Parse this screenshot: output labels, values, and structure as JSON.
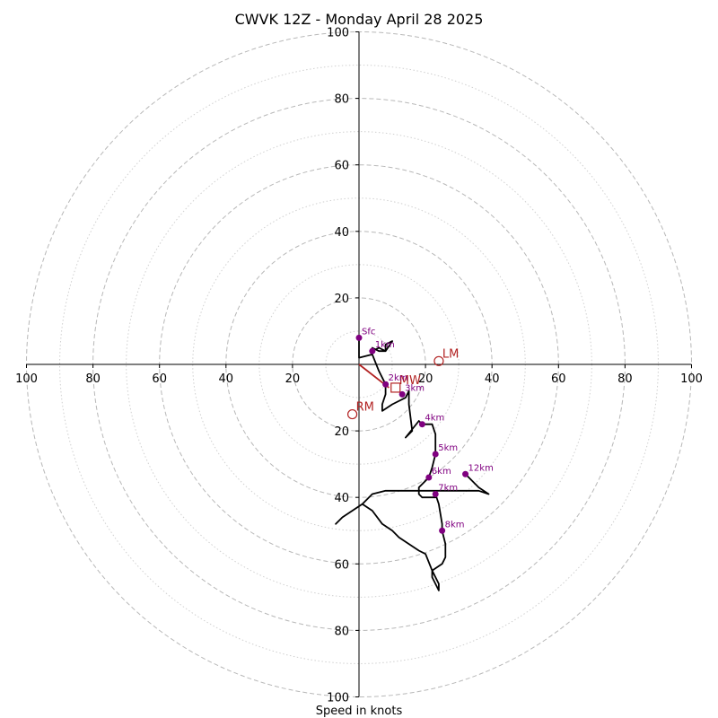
{
  "chart_data": {
    "type": "line",
    "title": "CWVK 12Z - Monday April 28 2025",
    "xlabel": "Speed in knots",
    "ylabel": "",
    "xlim": [
      -100,
      100
    ],
    "ylim": [
      -100,
      100
    ],
    "rings_dashed": [
      20,
      40,
      60,
      80,
      100
    ],
    "rings_dotted": [
      10,
      30,
      50,
      70,
      90
    ],
    "ticks": [
      -100,
      -80,
      -60,
      -40,
      -20,
      20,
      40,
      60,
      80,
      100
    ],
    "tick_labels": [
      "100",
      "80",
      "60",
      "40",
      "20",
      "20",
      "40",
      "60",
      "80",
      "100"
    ],
    "grid": true,
    "hodograph": {
      "color": "#000000",
      "points": [
        [
          0,
          2
        ],
        [
          0,
          8
        ],
        [
          0,
          2
        ],
        [
          4,
          3
        ],
        [
          4,
          5
        ],
        [
          6,
          4
        ],
        [
          8,
          4
        ],
        [
          8,
          6
        ],
        [
          10,
          7
        ],
        [
          8,
          4
        ],
        [
          6,
          5
        ],
        [
          4,
          4
        ],
        [
          4,
          3
        ],
        [
          6,
          -2
        ],
        [
          8,
          -6
        ],
        [
          8,
          -9
        ],
        [
          7,
          -12
        ],
        [
          7,
          -14
        ],
        [
          10,
          -12
        ],
        [
          14,
          -10
        ],
        [
          15,
          -8
        ],
        [
          15,
          -12
        ],
        [
          16,
          -20
        ],
        [
          14,
          -22
        ],
        [
          18,
          -17
        ],
        [
          19,
          -18
        ],
        [
          22,
          -18
        ],
        [
          23,
          -21
        ],
        [
          23,
          -27
        ],
        [
          22,
          -31
        ],
        [
          21,
          -34
        ],
        [
          20,
          -35
        ],
        [
          18,
          -37
        ],
        [
          18,
          -39
        ],
        [
          19,
          -40
        ],
        [
          23,
          -40
        ],
        [
          23,
          -39
        ],
        [
          24,
          -42
        ],
        [
          25,
          -48
        ],
        [
          25,
          -50
        ],
        [
          26,
          -54
        ],
        [
          26,
          -58
        ],
        [
          25,
          -60
        ],
        [
          22,
          -62
        ],
        [
          22,
          -64
        ],
        [
          23,
          -66
        ],
        [
          24,
          -68
        ],
        [
          24,
          -66
        ],
        [
          22,
          -62
        ],
        [
          20,
          -57
        ],
        [
          18,
          -56
        ],
        [
          15,
          -54
        ],
        [
          12,
          -52
        ],
        [
          10,
          -50
        ],
        [
          7,
          -48
        ],
        [
          4,
          -44
        ],
        [
          1,
          -42
        ],
        [
          -2,
          -44
        ],
        [
          -5,
          -46
        ],
        [
          -7,
          -48
        ],
        [
          -5,
          -46
        ],
        [
          -2,
          -44
        ],
        [
          1,
          -42
        ],
        [
          4,
          -39
        ],
        [
          8,
          -38
        ],
        [
          12,
          -38
        ],
        [
          16,
          -38
        ],
        [
          20,
          -38
        ],
        [
          24,
          -38
        ],
        [
          28,
          -38
        ],
        [
          32,
          -38
        ],
        [
          36,
          -38
        ],
        [
          39,
          -39
        ],
        [
          36,
          -37
        ],
        [
          32,
          -33
        ]
      ]
    },
    "height_markers": [
      {
        "label": "Sfc",
        "u": 0,
        "v": 8
      },
      {
        "label": "1km",
        "u": 4,
        "v": 4
      },
      {
        "label": "2km",
        "u": 8,
        "v": -6
      },
      {
        "label": "3km",
        "u": 13,
        "v": -9
      },
      {
        "label": "4km",
        "u": 19,
        "v": -18
      },
      {
        "label": "5km",
        "u": 23,
        "v": -27
      },
      {
        "label": "6km",
        "u": 21,
        "v": -34
      },
      {
        "label": "7km",
        "u": 23,
        "v": -39
      },
      {
        "label": "8km",
        "u": 25,
        "v": -50
      },
      {
        "label": "12km",
        "u": 32,
        "v": -33
      }
    ],
    "marker_color": "#800080",
    "storm_motion": {
      "color": "#b22222",
      "shear_vector": [
        [
          0,
          0
        ],
        [
          9,
          -7
        ]
      ],
      "points": [
        {
          "label": "LM",
          "u": 24,
          "v": 1,
          "shape": "circle"
        },
        {
          "label": "RM",
          "u": -2,
          "v": -15,
          "shape": "circle"
        },
        {
          "label": "MW",
          "u": 11,
          "v": -7,
          "shape": "square"
        }
      ]
    }
  }
}
